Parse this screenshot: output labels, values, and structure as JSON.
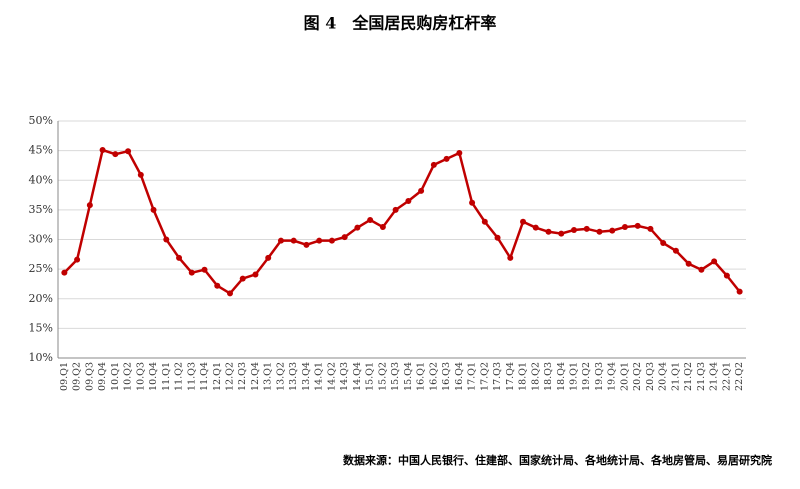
{
  "chart_data": {
    "type": "line",
    "title": "图 4　全国居民购房杠杆率",
    "source": "数据来源：中国人民银行、住建部、国家统计局、各地统计局、各地房管局、易居研究院",
    "categories": [
      "09.Q1",
      "09.Q2",
      "09.Q3",
      "09.Q4",
      "10.Q1",
      "10.Q2",
      "10.Q3",
      "10.Q4",
      "11.Q1",
      "11.Q2",
      "11.Q3",
      "11.Q4",
      "12.Q1",
      "12.Q2",
      "12.Q3",
      "12.Q4",
      "13.Q1",
      "13.Q2",
      "13.Q3",
      "13.Q4",
      "14.Q1",
      "14.Q2",
      "14.Q3",
      "14.Q4",
      "15.Q1",
      "15.Q2",
      "15.Q3",
      "15.Q4",
      "16.Q1",
      "16.Q2",
      "16.Q3",
      "16.Q4",
      "17.Q1",
      "17.Q2",
      "17.Q3",
      "17.Q4",
      "18.Q1",
      "18.Q2",
      "18.Q3",
      "18.Q4",
      "19.Q1",
      "19.Q2",
      "19.Q3",
      "19.Q4",
      "20.Q1",
      "20.Q2",
      "20.Q3",
      "20.Q4",
      "21.Q1",
      "21.Q2",
      "21.Q3",
      "21.Q4",
      "22.Q1",
      "22.Q2"
    ],
    "series": [
      {
        "color": "#c00000",
        "values": [
          24.4,
          26.6,
          35.8,
          45.1,
          44.4,
          44.9,
          40.9,
          35.0,
          30.0,
          26.9,
          24.4,
          24.9,
          22.2,
          20.9,
          23.4,
          24.1,
          26.9,
          29.8,
          29.8,
          29.1,
          29.8,
          29.8,
          30.4,
          32.0,
          33.3,
          32.1,
          35.0,
          36.5,
          38.2,
          42.6,
          43.6,
          44.6,
          36.2,
          33.0,
          30.3,
          26.9,
          33.0,
          32.0,
          31.3,
          31.0,
          31.6,
          31.8,
          31.3,
          31.5,
          32.1,
          32.3,
          31.8,
          29.4,
          28.1,
          25.9,
          24.9,
          26.3,
          23.9,
          21.2
        ]
      }
    ],
    "ylim": [
      10,
      50
    ],
    "yticks": [
      {
        "value": 10,
        "label": "10%"
      },
      {
        "value": 15,
        "label": "15%"
      },
      {
        "value": 20,
        "label": "20%"
      },
      {
        "value": 25,
        "label": "25%"
      },
      {
        "value": 30,
        "label": "30%"
      },
      {
        "value": 35,
        "label": "35%"
      },
      {
        "value": 40,
        "label": "40%"
      },
      {
        "value": 45,
        "label": "45%"
      },
      {
        "value": 50,
        "label": "50%"
      }
    ],
    "grid": true
  }
}
